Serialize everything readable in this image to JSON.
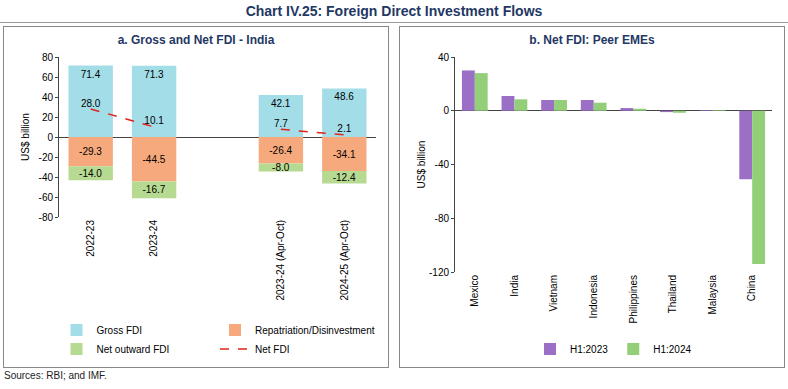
{
  "title": "Chart IV.25: Foreign Direct Investment Flows",
  "source": "Sources: RBI; and IMF.",
  "chart_data": [
    {
      "type": "bar",
      "title": "a. Gross and Net FDI - India",
      "y_label": "US$ billion",
      "categories": [
        "2022-23",
        "2023-24",
        null,
        "2023-24 (Apr-Oct)",
        "2024-25 (Apr-Oct)"
      ],
      "stacked": true,
      "data_labels": true,
      "grid": false,
      "legend": "bottom",
      "ylim": [
        -80,
        80
      ],
      "yticks": [
        -80,
        -60,
        -40,
        -20,
        0,
        20,
        40,
        60,
        80
      ],
      "series": [
        {
          "name": "Gross FDI",
          "color": "#a3dde8",
          "values": [
            71.4,
            71.3,
            null,
            42.1,
            48.6
          ],
          "value_labels": [
            "71.4",
            "71.3",
            null,
            "42.1",
            "48.6"
          ]
        },
        {
          "name": "Repatriation/Disinvestment",
          "color": "#f5a97c",
          "values": [
            -29.3,
            -44.5,
            null,
            -26.4,
            -34.1
          ],
          "value_labels": [
            "-29.3",
            "-44.5",
            null,
            "-26.4",
            "-34.1"
          ]
        },
        {
          "name": "Net outward FDI",
          "color": "#b7da92",
          "values": [
            -14.0,
            -16.7,
            null,
            -8.0,
            -12.4
          ],
          "value_labels": [
            "-14.0",
            "-16.7",
            null,
            "-8.0",
            "-12.4"
          ]
        },
        {
          "name": "Net FDI",
          "type": "line",
          "line_style": "dashed",
          "color": "#e2231a",
          "values": [
            28.0,
            10.1,
            null,
            7.7,
            2.1
          ],
          "value_labels": [
            "28.0",
            "10.1",
            null,
            "7.7",
            "2.1"
          ]
        }
      ]
    },
    {
      "type": "bar",
      "title": "b. Net FDI: Peer EMEs",
      "y_label": "US$ billion",
      "categories": [
        "Mexico",
        "India",
        "Vietnam",
        "Indonesia",
        "Philippines",
        "Thailand",
        "Malaysia",
        "China"
      ],
      "stacked": false,
      "data_labels": false,
      "grid": false,
      "legend": "bottom",
      "ylim": [
        -120,
        40
      ],
      "yticks": [
        -120,
        -80,
        -40,
        0,
        40
      ],
      "series": [
        {
          "name": "H1:2023",
          "color": "#9b6fc6",
          "values": [
            30,
            11,
            8,
            8,
            2,
            -1,
            0.5,
            -51
          ]
        },
        {
          "name": "H1:2024",
          "color": "#93cf78",
          "values": [
            28,
            8.5,
            8,
            6,
            1.5,
            -1.5,
            0.5,
            -114
          ]
        }
      ]
    }
  ]
}
